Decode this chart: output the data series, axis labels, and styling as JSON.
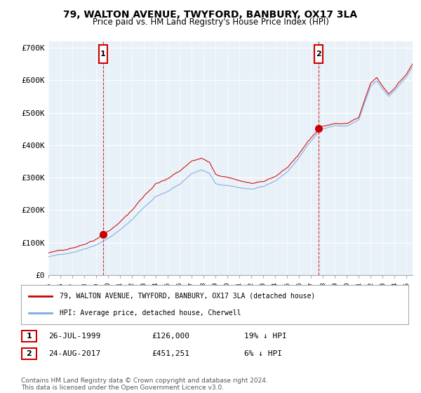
{
  "title": "79, WALTON AVENUE, TWYFORD, BANBURY, OX17 3LA",
  "subtitle": "Price paid vs. HM Land Registry's House Price Index (HPI)",
  "legend_line1": "79, WALTON AVENUE, TWYFORD, BANBURY, OX17 3LA (detached house)",
  "legend_line2": "HPI: Average price, detached house, Cherwell",
  "annotation1_label": "1",
  "annotation1_date": "26-JUL-1999",
  "annotation1_price": "£126,000",
  "annotation1_hpi": "19% ↓ HPI",
  "annotation1_year": 1999.57,
  "annotation1_value": 126000,
  "annotation2_label": "2",
  "annotation2_date": "24-AUG-2017",
  "annotation2_price": "£451,251",
  "annotation2_hpi": "6% ↓ HPI",
  "annotation2_year": 2017.65,
  "annotation2_value": 451251,
  "footer": "Contains HM Land Registry data © Crown copyright and database right 2024.\nThis data is licensed under the Open Government Licence v3.0.",
  "color_red": "#cc0000",
  "color_blue": "#7aaadd",
  "color_bg": "#e8f0f8",
  "color_annotation_box": "#cc0000",
  "ylim": [
    0,
    720000
  ],
  "yticks": [
    0,
    100000,
    200000,
    300000,
    400000,
    500000,
    600000,
    700000
  ],
  "ytick_labels": [
    "£0",
    "£100K",
    "£200K",
    "£300K",
    "£400K",
    "£500K",
    "£600K",
    "£700K"
  ]
}
